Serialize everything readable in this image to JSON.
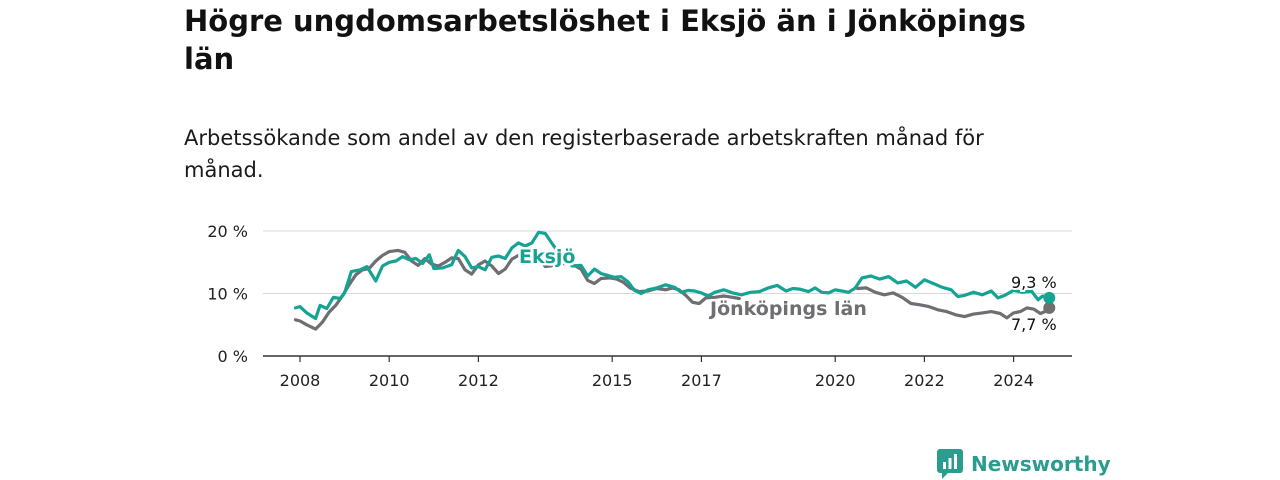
{
  "title": "Högre ungdomsarbetslöshet i Eksjö än i Jönköpings län",
  "subtitle": "Arbetssökande som andel av den registerbaserade arbetskraften månad för månad.",
  "brand": {
    "name": "Newsworthy",
    "color": "#2a9d8f"
  },
  "chart_data": {
    "type": "line",
    "title": "Högre ungdomsarbetslöshet i Eksjö än i Jönköpings län",
    "subtitle": "Arbetssökande som andel av den registerbaserade arbetskraften månad för månad.",
    "xlabel": "",
    "ylabel": "",
    "x_range": [
      2007.75,
      2024.9
    ],
    "ylim": [
      0,
      20
    ],
    "y_ticks": [
      {
        "value": 0,
        "label": "0 %"
      },
      {
        "value": 10,
        "label": "10 %"
      },
      {
        "value": 20,
        "label": "20 %"
      }
    ],
    "x_ticks": [
      {
        "value": 2008,
        "label": "2008"
      },
      {
        "value": 2010,
        "label": "2010"
      },
      {
        "value": 2012,
        "label": "2012"
      },
      {
        "value": 2015,
        "label": "2015"
      },
      {
        "value": 2017,
        "label": "2017"
      },
      {
        "value": 2020,
        "label": "2020"
      },
      {
        "value": 2022,
        "label": "2022"
      },
      {
        "value": 2024,
        "label": "2024"
      }
    ],
    "grid": true,
    "series": [
      {
        "name": "Jönköpings län",
        "label": "Jönköpings län",
        "color": "#6e6e73",
        "end_label": "7,7 %",
        "points": [
          [
            2007.9,
            5.8
          ],
          [
            2008.0,
            5.6
          ],
          [
            2008.15,
            5.0
          ],
          [
            2008.35,
            4.3
          ],
          [
            2008.5,
            5.4
          ],
          [
            2008.65,
            7.0
          ],
          [
            2008.8,
            8.1
          ],
          [
            2008.95,
            9.6
          ],
          [
            2009.1,
            11.4
          ],
          [
            2009.25,
            13.0
          ],
          [
            2009.4,
            13.8
          ],
          [
            2009.55,
            14.0
          ],
          [
            2009.7,
            15.2
          ],
          [
            2009.85,
            16.1
          ],
          [
            2010.0,
            16.7
          ],
          [
            2010.2,
            16.9
          ],
          [
            2010.35,
            16.6
          ],
          [
            2010.5,
            15.2
          ],
          [
            2010.65,
            14.5
          ],
          [
            2010.8,
            15.6
          ],
          [
            2010.95,
            14.7
          ],
          [
            2011.1,
            14.4
          ],
          [
            2011.25,
            15.0
          ],
          [
            2011.4,
            15.7
          ],
          [
            2011.55,
            15.6
          ],
          [
            2011.7,
            13.8
          ],
          [
            2011.85,
            13.1
          ],
          [
            2012.0,
            14.6
          ],
          [
            2012.15,
            15.2
          ],
          [
            2012.3,
            14.4
          ],
          [
            2012.45,
            13.2
          ],
          [
            2012.6,
            13.9
          ],
          [
            2012.75,
            15.5
          ],
          [
            2012.9,
            16.1
          ],
          [
            2013.0,
            16.4
          ],
          [
            2013.3,
            16.4
          ],
          [
            2013.5,
            14.3
          ],
          [
            2013.7,
            14.5
          ],
          [
            2013.9,
            14.8
          ],
          [
            2014.1,
            14.7
          ],
          [
            2014.3,
            13.9
          ],
          [
            2014.45,
            12.1
          ],
          [
            2014.6,
            11.6
          ],
          [
            2014.75,
            12.4
          ],
          [
            2014.95,
            12.5
          ],
          [
            2015.1,
            12.3
          ],
          [
            2015.25,
            11.8
          ],
          [
            2015.4,
            10.9
          ],
          [
            2015.6,
            10.3
          ],
          [
            2015.8,
            10.4
          ],
          [
            2016.0,
            10.8
          ],
          [
            2016.2,
            10.6
          ],
          [
            2016.35,
            10.9
          ],
          [
            2016.5,
            10.6
          ],
          [
            2016.65,
            9.7
          ],
          [
            2016.8,
            8.6
          ],
          [
            2016.95,
            8.4
          ],
          [
            2017.1,
            9.3
          ],
          [
            2017.3,
            9.4
          ],
          [
            2017.5,
            9.6
          ],
          [
            2017.7,
            9.4
          ],
          [
            2017.85,
            9.2
          ],
          [
            2020.5,
            10.8
          ],
          [
            2020.7,
            10.9
          ],
          [
            2020.9,
            10.2
          ],
          [
            2021.1,
            9.8
          ],
          [
            2021.3,
            10.1
          ],
          [
            2021.5,
            9.4
          ],
          [
            2021.7,
            8.4
          ],
          [
            2021.9,
            8.2
          ],
          [
            2022.1,
            7.9
          ],
          [
            2022.3,
            7.4
          ],
          [
            2022.5,
            7.1
          ],
          [
            2022.7,
            6.6
          ],
          [
            2022.9,
            6.3
          ],
          [
            2023.1,
            6.7
          ],
          [
            2023.3,
            6.9
          ],
          [
            2023.5,
            7.1
          ],
          [
            2023.7,
            6.8
          ],
          [
            2023.85,
            6.1
          ],
          [
            2024.0,
            6.9
          ],
          [
            2024.15,
            7.1
          ],
          [
            2024.3,
            7.7
          ],
          [
            2024.45,
            7.5
          ],
          [
            2024.6,
            6.8
          ],
          [
            2024.7,
            7.1
          ],
          [
            2024.8,
            7.7
          ]
        ]
      },
      {
        "name": "Eksjö",
        "label": "Eksjö",
        "color": "#16a394",
        "end_label": "9,3 %",
        "points": [
          [
            2007.9,
            7.7
          ],
          [
            2008.0,
            7.9
          ],
          [
            2008.15,
            6.9
          ],
          [
            2008.35,
            6.0
          ],
          [
            2008.45,
            8.1
          ],
          [
            2008.6,
            7.6
          ],
          [
            2008.75,
            9.4
          ],
          [
            2008.9,
            9.2
          ],
          [
            2009.0,
            10.1
          ],
          [
            2009.15,
            13.5
          ],
          [
            2009.35,
            13.8
          ],
          [
            2009.5,
            14.3
          ],
          [
            2009.7,
            12.0
          ],
          [
            2009.85,
            14.4
          ],
          [
            2010.0,
            15.0
          ],
          [
            2010.15,
            15.2
          ],
          [
            2010.3,
            15.9
          ],
          [
            2010.45,
            15.4
          ],
          [
            2010.6,
            15.6
          ],
          [
            2010.75,
            14.8
          ],
          [
            2010.9,
            16.2
          ],
          [
            2011.0,
            14.0
          ],
          [
            2011.2,
            14.1
          ],
          [
            2011.4,
            14.6
          ],
          [
            2011.55,
            16.9
          ],
          [
            2011.7,
            15.9
          ],
          [
            2011.85,
            14.1
          ],
          [
            2012.0,
            14.3
          ],
          [
            2012.15,
            13.8
          ],
          [
            2012.3,
            15.8
          ],
          [
            2012.45,
            16.0
          ],
          [
            2012.6,
            15.6
          ],
          [
            2012.75,
            17.3
          ],
          [
            2012.9,
            18.1
          ],
          [
            2013.05,
            17.6
          ],
          [
            2013.2,
            18.1
          ],
          [
            2013.35,
            19.8
          ],
          [
            2013.5,
            19.6
          ],
          [
            2013.7,
            17.5
          ],
          [
            2013.9,
            15.9
          ],
          [
            2014.1,
            14.4
          ],
          [
            2014.3,
            14.5
          ],
          [
            2014.45,
            12.8
          ],
          [
            2014.6,
            13.9
          ],
          [
            2014.75,
            13.2
          ],
          [
            2014.9,
            12.9
          ],
          [
            2015.05,
            12.6
          ],
          [
            2015.2,
            12.7
          ],
          [
            2015.35,
            11.9
          ],
          [
            2015.5,
            10.5
          ],
          [
            2015.65,
            10.0
          ],
          [
            2015.8,
            10.6
          ],
          [
            2016.0,
            10.9
          ],
          [
            2016.2,
            11.4
          ],
          [
            2016.4,
            11.0
          ],
          [
            2016.55,
            10.2
          ],
          [
            2016.7,
            10.5
          ],
          [
            2016.85,
            10.4
          ],
          [
            2017.0,
            10.1
          ],
          [
            2017.15,
            9.6
          ],
          [
            2017.3,
            10.2
          ],
          [
            2017.5,
            10.6
          ],
          [
            2017.7,
            10.1
          ],
          [
            2017.9,
            9.8
          ],
          [
            2018.1,
            10.2
          ],
          [
            2018.3,
            10.3
          ],
          [
            2018.5,
            10.9
          ],
          [
            2018.7,
            11.3
          ],
          [
            2018.9,
            10.4
          ],
          [
            2019.05,
            10.8
          ],
          [
            2019.2,
            10.7
          ],
          [
            2019.4,
            10.3
          ],
          [
            2019.55,
            10.9
          ],
          [
            2019.7,
            10.2
          ],
          [
            2019.85,
            10.1
          ],
          [
            2020.0,
            10.6
          ],
          [
            2020.15,
            10.4
          ],
          [
            2020.3,
            10.2
          ],
          [
            2020.45,
            10.9
          ],
          [
            2020.6,
            12.5
          ],
          [
            2020.8,
            12.8
          ],
          [
            2021.0,
            12.3
          ],
          [
            2021.2,
            12.7
          ],
          [
            2021.4,
            11.7
          ],
          [
            2021.6,
            12.0
          ],
          [
            2021.8,
            11.0
          ],
          [
            2022.0,
            12.2
          ],
          [
            2022.2,
            11.6
          ],
          [
            2022.4,
            11.0
          ],
          [
            2022.6,
            10.6
          ],
          [
            2022.75,
            9.5
          ],
          [
            2022.9,
            9.7
          ],
          [
            2023.1,
            10.2
          ],
          [
            2023.3,
            9.8
          ],
          [
            2023.5,
            10.4
          ],
          [
            2023.65,
            9.3
          ],
          [
            2023.8,
            9.7
          ],
          [
            2024.0,
            10.5
          ],
          [
            2024.2,
            10.2
          ],
          [
            2024.4,
            10.4
          ],
          [
            2024.55,
            9.0
          ],
          [
            2024.65,
            9.6
          ],
          [
            2024.8,
            9.3
          ]
        ]
      }
    ]
  }
}
